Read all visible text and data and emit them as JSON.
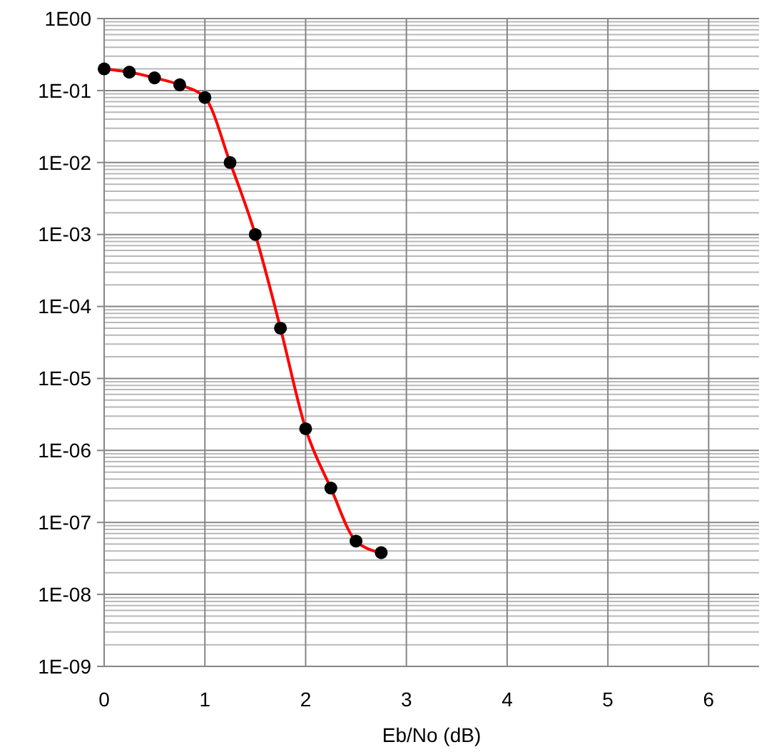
{
  "chart_data": {
    "type": "line",
    "xlabel": "Eb/No (dB)",
    "x": [
      0,
      0.25,
      0.5,
      0.75,
      1,
      1.25,
      1.5,
      1.75,
      2,
      2.25,
      2.5,
      2.75
    ],
    "series": [
      {
        "color": "#ff0000",
        "values": [
          0.2,
          0.18,
          0.15,
          0.12,
          0.08,
          0.01,
          0.001,
          5e-05,
          2e-06,
          3e-07,
          5.5e-08,
          3.8e-08
        ]
      }
    ],
    "xlim": [
      0,
      6.5
    ],
    "ylim": [
      1e-09,
      1
    ],
    "xticks": [
      0,
      1,
      2,
      3,
      4,
      5,
      6
    ],
    "yticks": [
      {
        "value": 1,
        "label": "1E00"
      },
      {
        "value": 0.1,
        "label": "1E-01"
      },
      {
        "value": 0.01,
        "label": "1E-02"
      },
      {
        "value": 0.001,
        "label": "1E-03"
      },
      {
        "value": 0.0001,
        "label": "1E-04"
      },
      {
        "value": 1e-05,
        "label": "1E-05"
      },
      {
        "value": 1e-06,
        "label": "1E-06"
      },
      {
        "value": 1e-07,
        "label": "1E-07"
      },
      {
        "value": 1e-08,
        "label": "1E-08"
      },
      {
        "value": 1e-09,
        "label": "1E-09"
      }
    ],
    "log": "y",
    "grid": true,
    "marker": "circle",
    "line_style": "solid"
  }
}
